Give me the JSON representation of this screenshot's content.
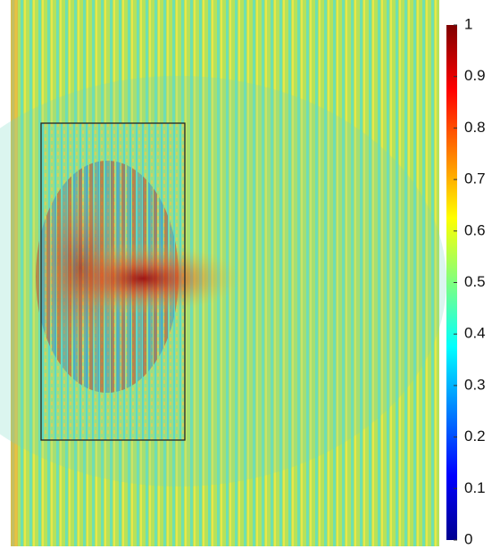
{
  "chart_data": {
    "type": "heatmap",
    "colormap": "jet",
    "clim": [
      0,
      1
    ],
    "cticks": [
      0,
      0.1,
      0.2,
      0.3,
      0.4,
      0.5,
      0.6,
      0.7,
      0.8,
      0.9,
      1
    ]
  }
}
